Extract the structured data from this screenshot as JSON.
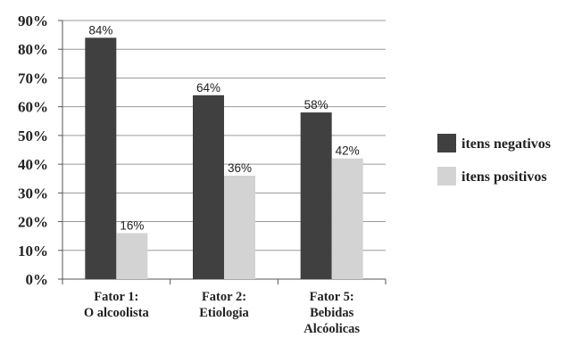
{
  "chart_data": {
    "type": "bar",
    "categories": [
      [
        "Fator 1:",
        "O alcoolista"
      ],
      [
        "Fator 2:",
        "Etiologia"
      ],
      [
        "Fator 5:",
        "Bebidas",
        "Alcóolicas"
      ]
    ],
    "series": [
      {
        "name": "itens negativos",
        "values": [
          84,
          64,
          58
        ],
        "labels": [
          "84%",
          "64%",
          "58%"
        ],
        "color": "#404040"
      },
      {
        "name": "itens positivos",
        "values": [
          16,
          36,
          42
        ],
        "labels": [
          "16%",
          "36%",
          "42%"
        ],
        "color": "#d3d3d3"
      }
    ],
    "ylim": [
      0,
      90
    ],
    "ytick_step": 10,
    "ytick_labels": [
      "0%",
      "10%",
      "20%",
      "30%",
      "40%",
      "50%",
      "60%",
      "70%",
      "80%",
      "90%"
    ],
    "grid": true,
    "legend_position": "right",
    "title": "",
    "xlabel": "",
    "ylabel": ""
  }
}
